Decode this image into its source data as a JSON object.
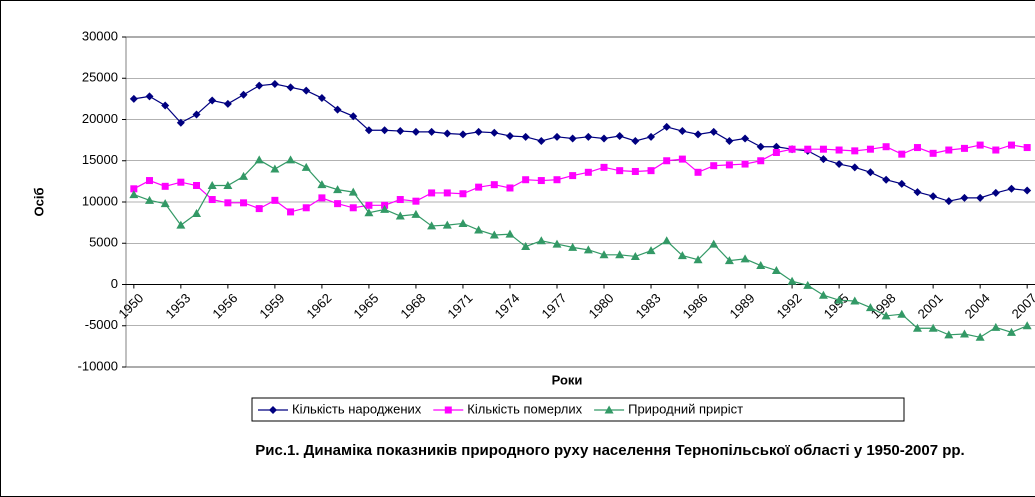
{
  "chart_data": {
    "type": "line",
    "title": "Рис.1. Динаміка показників природного руху населення Тернопільської області у 1950-2007 рр.",
    "x_label": "Роки",
    "y_label": "Осіб",
    "categories": [
      "1950",
      null,
      null,
      "1953",
      null,
      null,
      "1956",
      null,
      null,
      "1959",
      null,
      null,
      "1962",
      null,
      null,
      "1965",
      null,
      null,
      "1968",
      null,
      null,
      "1971",
      null,
      null,
      "1974",
      null,
      null,
      "1977",
      null,
      null,
      "1980",
      null,
      null,
      "1983",
      null,
      null,
      "1986",
      null,
      null,
      "1989",
      null,
      null,
      "1992",
      null,
      null,
      "1995",
      null,
      null,
      "1998",
      null,
      null,
      "2001",
      null,
      null,
      "2004",
      null,
      null,
      "2007"
    ],
    "series": [
      {
        "name": "Кількість народжених",
        "color": "#000080",
        "marker": "diamond",
        "values": [
          22500,
          22800,
          21700,
          19600,
          20600,
          22300,
          21900,
          23000,
          24100,
          24300,
          23900,
          23500,
          22600,
          21200,
          20400,
          18700,
          18700,
          18600,
          18500,
          18500,
          18300,
          18200,
          18500,
          18400,
          18000,
          17900,
          17400,
          17900,
          17700,
          17900,
          17700,
          18000,
          17400,
          17900,
          19100,
          18600,
          18200,
          18500,
          17400,
          17700,
          16700,
          16700,
          16400,
          16200,
          15200,
          14600,
          14200,
          13600,
          12700,
          12200,
          11200,
          10700,
          10100,
          10500,
          10500,
          11100,
          11600,
          11400
        ]
      },
      {
        "name": "Кількість померлих",
        "color": "#ff00ff",
        "marker": "square",
        "values": [
          11600,
          12600,
          11900,
          12400,
          12000,
          10300,
          9900,
          9900,
          9200,
          10200,
          8800,
          9300,
          10500,
          9800,
          9300,
          9600,
          9600,
          10300,
          10100,
          11100,
          11100,
          11000,
          11800,
          12100,
          11700,
          12700,
          12600,
          12700,
          13200,
          13600,
          14200,
          13800,
          13700,
          13800,
          15000,
          15200,
          13600,
          14400,
          14500,
          14600,
          15000,
          16000,
          16400,
          16400,
          16400,
          16300,
          16200,
          16400,
          16700,
          15800,
          16600,
          15900,
          16300,
          16500,
          16900,
          16300,
          16900,
          16600
        ]
      },
      {
        "name": "Природний приріст",
        "color": "#339966",
        "marker": "triangle",
        "values": [
          10900,
          10200,
          9800,
          7200,
          8600,
          12000,
          12000,
          13100,
          15100,
          14000,
          15100,
          14200,
          12100,
          11500,
          11200,
          8700,
          9100,
          8300,
          8500,
          7100,
          7200,
          7400,
          6600,
          6000,
          6100,
          4600,
          5300,
          4900,
          4500,
          4200,
          3600,
          3600,
          3400,
          4100,
          5300,
          3500,
          3000,
          4900,
          2900,
          3100,
          2300,
          1700,
          400,
          -100,
          -1300,
          -1900,
          -2000,
          -2800,
          -3800,
          -3600,
          -5300,
          -5300,
          -6100,
          -6000,
          -6400,
          -5200,
          -5800,
          -5000
        ]
      }
    ],
    "ylim": [
      -10000,
      30000
    ],
    "yticks": [
      -10000,
      -5000,
      0,
      5000,
      10000,
      15000,
      20000,
      25000,
      30000
    ],
    "grid": true
  }
}
